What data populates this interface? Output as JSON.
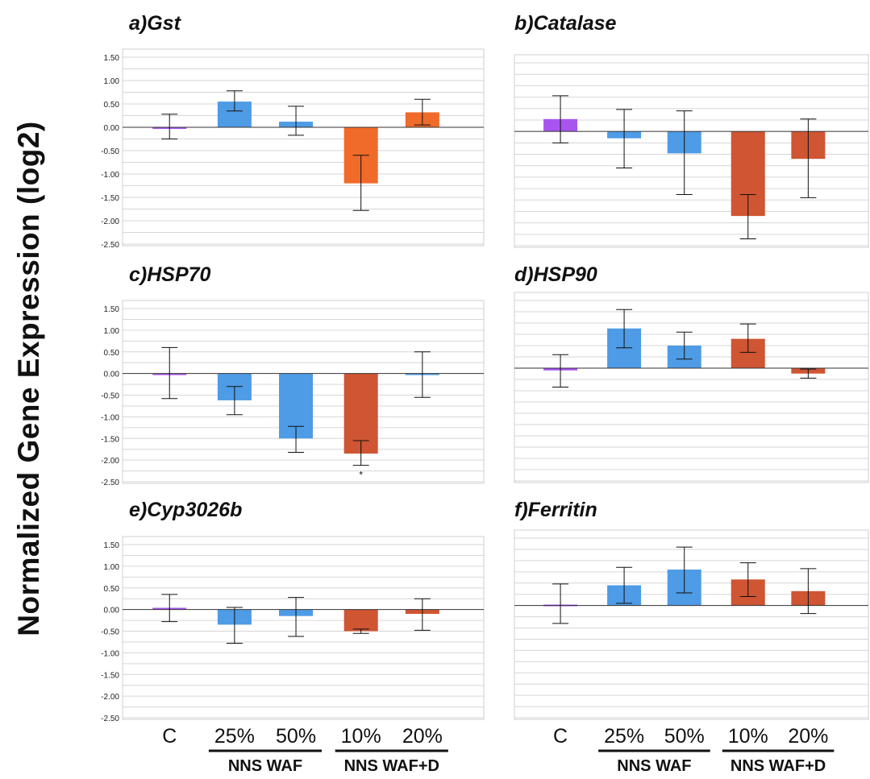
{
  "y_axis_label": "Normalized Gene Expression (log2)",
  "colors": {
    "control": "#a855f0",
    "waf": "#4e9be6",
    "wafd_light": "#f06a2a",
    "wafd": "#cf5533"
  },
  "x_axis": {
    "categories": [
      "C",
      "25%",
      "50%",
      "10%",
      "20%"
    ],
    "groups": [
      {
        "label": "NNS WAF",
        "categories": [
          "25%",
          "50%"
        ]
      },
      {
        "label": "NNS WAF+D",
        "categories": [
          "10%",
          "20%"
        ]
      }
    ]
  },
  "chart_data": [
    {
      "type": "bar",
      "title": "a)Gst",
      "categories": [
        "C",
        "25%",
        "50%",
        "10%",
        "20%"
      ],
      "values": [
        0.0,
        0.55,
        0.12,
        -1.2,
        0.32
      ],
      "error_low": [
        -0.25,
        0.35,
        -0.17,
        -1.78,
        0.05
      ],
      "error_high": [
        0.28,
        0.78,
        0.45,
        -0.6,
        0.6
      ],
      "bar_colors": [
        "#a855f0",
        "#4e9be6",
        "#4e9be6",
        "#f06a2a",
        "#f06a2a"
      ],
      "ylim": [
        -2.5,
        1.5
      ],
      "yticks": [
        "1.50",
        "1.00",
        "0.50",
        "0.00",
        "-0.50",
        "-1.00",
        "-1.50",
        "-2.00",
        "-2.50"
      ],
      "show_ytick_labels": true,
      "annotations": []
    },
    {
      "type": "bar",
      "title": "b)Catalase",
      "categories": [
        "C",
        "25%",
        "50%",
        "10%",
        "20%"
      ],
      "values": [
        0.27,
        -0.15,
        -0.48,
        -1.85,
        -0.6
      ],
      "error_low": [
        -0.25,
        -0.8,
        -1.38,
        -2.35,
        -1.45
      ],
      "error_high": [
        0.78,
        0.48,
        0.45,
        -1.38,
        0.27
      ],
      "bar_colors": [
        "#a855f0",
        "#4e9be6",
        "#4e9be6",
        "#cf5533",
        "#cf5533"
      ],
      "ylim": [
        -2.5,
        1.5
      ],
      "yticks": [],
      "show_ytick_labels": false,
      "annotations": []
    },
    {
      "type": "bar",
      "title": "c)HSP70",
      "categories": [
        "C",
        "25%",
        "50%",
        "10%",
        "20%"
      ],
      "values": [
        0.0,
        -0.62,
        -1.5,
        -1.85,
        0.0
      ],
      "error_low": [
        -0.58,
        -0.95,
        -1.82,
        -2.12,
        -0.55
      ],
      "error_high": [
        0.6,
        -0.3,
        -1.22,
        -1.55,
        0.5
      ],
      "bar_colors": [
        "#a855f0",
        "#4e9be6",
        "#4e9be6",
        "#cf5533",
        "#4e9be6"
      ],
      "ylim": [
        -2.5,
        1.5
      ],
      "yticks": [
        "1.50",
        "1.00",
        "0.50",
        "0.00",
        "-0.50",
        "-1.00",
        "-1.50",
        "-2.00",
        "-2.50"
      ],
      "show_ytick_labels": true,
      "annotations": [
        {
          "category": "10%",
          "text": "*"
        }
      ]
    },
    {
      "type": "bar",
      "title": "d)HSP90",
      "categories": [
        "C",
        "25%",
        "50%",
        "10%",
        "20%"
      ],
      "values": [
        -0.05,
        0.88,
        0.5,
        0.65,
        -0.12
      ],
      "error_low": [
        -0.42,
        0.45,
        0.2,
        0.35,
        -0.22
      ],
      "error_high": [
        0.3,
        1.3,
        0.8,
        0.98,
        -0.02
      ],
      "bar_colors": [
        "#a855f0",
        "#4e9be6",
        "#4e9be6",
        "#cf5533",
        "#cf5533"
      ],
      "ylim": [
        -2.5,
        1.5
      ],
      "yticks": [],
      "show_ytick_labels": false,
      "annotations": []
    },
    {
      "type": "bar",
      "title": "e)Cyp3026b",
      "categories": [
        "C",
        "25%",
        "50%",
        "10%",
        "20%"
      ],
      "values": [
        0.04,
        -0.35,
        -0.15,
        -0.5,
        -0.1
      ],
      "error_low": [
        -0.28,
        -0.78,
        -0.62,
        -0.55,
        -0.48
      ],
      "error_high": [
        0.35,
        0.05,
        0.28,
        -0.45,
        0.25
      ],
      "bar_colors": [
        "#a855f0",
        "#4e9be6",
        "#4e9be6",
        "#cf5533",
        "#cf5533"
      ],
      "ylim": [
        -2.5,
        1.5
      ],
      "yticks": [
        "1.50",
        "1.00",
        "0.50",
        "0.00",
        "-0.50",
        "-1.00",
        "-1.50",
        "-2.00",
        "-2.50"
      ],
      "show_ytick_labels": true,
      "annotations": []
    },
    {
      "type": "bar",
      "title": "f)Ferritin",
      "categories": [
        "C",
        "25%",
        "50%",
        "10%",
        "20%"
      ],
      "values": [
        0.02,
        0.45,
        0.8,
        0.58,
        0.32
      ],
      "error_low": [
        -0.4,
        0.05,
        0.28,
        0.2,
        -0.18
      ],
      "error_high": [
        0.48,
        0.85,
        1.3,
        0.95,
        0.82
      ],
      "bar_colors": [
        "#a855f0",
        "#4e9be6",
        "#4e9be6",
        "#cf5533",
        "#cf5533"
      ],
      "ylim": [
        -2.5,
        1.5
      ],
      "yticks": [],
      "show_ytick_labels": false,
      "annotations": []
    }
  ]
}
